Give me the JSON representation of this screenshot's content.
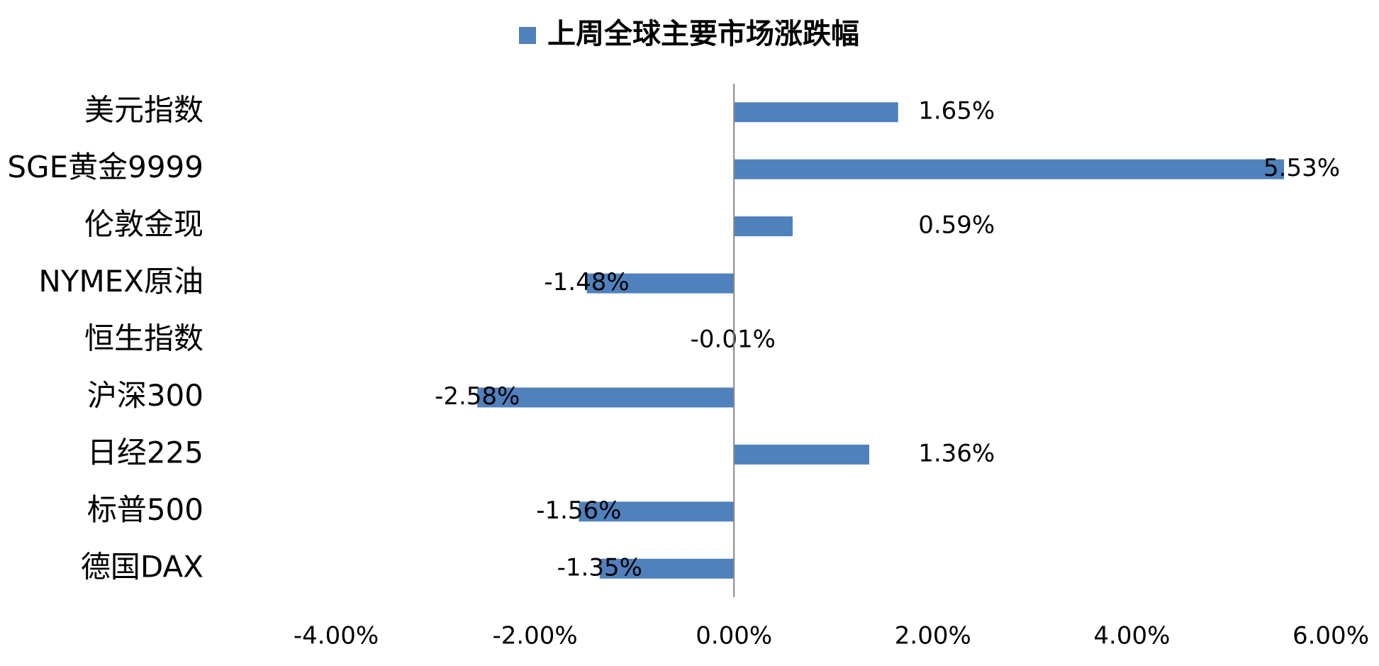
{
  "chart_data": {
    "type": "bar",
    "orientation": "horizontal",
    "legend": "top",
    "categories": [
      "美元指数",
      "SGE黄金9999",
      "伦敦金现",
      "NYMEX原油",
      "恒生指数",
      "沪深300",
      "日经225",
      "标普500",
      "德国DAX"
    ],
    "series": [
      {
        "name": "上周全球主要市场涨跌幅",
        "color": "#4f81bd",
        "values": [
          1.65,
          5.53,
          0.59,
          -1.48,
          -0.01,
          -2.58,
          1.36,
          -1.56,
          -1.35
        ],
        "value_labels": [
          "1.65%",
          "5.53%",
          "0.59%",
          "-1.48%",
          "-0.01%",
          "-2.58%",
          "1.36%",
          "-1.56%",
          "-1.35%"
        ]
      }
    ],
    "xlim": [
      -4,
      6
    ],
    "xticks": [
      {
        "value": -4,
        "label": "-4.00%"
      },
      {
        "value": -2,
        "label": "-2.00%"
      },
      {
        "value": 0,
        "label": "0.00%"
      },
      {
        "value": 2,
        "label": "2.00%"
      },
      {
        "value": 4,
        "label": "4.00%"
      },
      {
        "value": 6,
        "label": "6.00%"
      }
    ],
    "grid": false
  }
}
